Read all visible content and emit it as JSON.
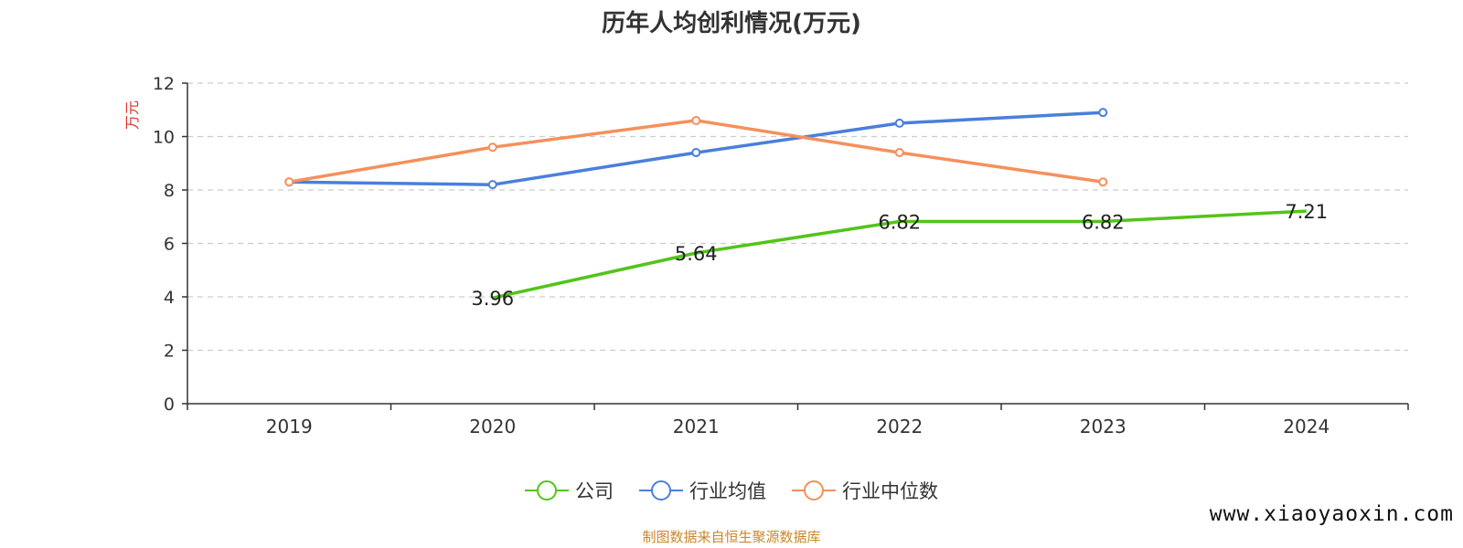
{
  "chart_data": {
    "type": "line",
    "title": "历年人均创利情况(万元)",
    "ylabel": "万元",
    "xlabel": "",
    "categories": [
      "2019",
      "2020",
      "2021",
      "2022",
      "2023",
      "2024"
    ],
    "ylim": [
      0,
      12
    ],
    "yticks": [
      0,
      2,
      4,
      6,
      8,
      10,
      12
    ],
    "grid": true,
    "legend_position": "bottom",
    "series": [
      {
        "name": "公司",
        "values": [
          null,
          3.96,
          5.64,
          6.82,
          6.82,
          7.21
        ],
        "labels": [
          null,
          "3.96",
          "5.64",
          "6.82",
          "6.82",
          "7.21"
        ],
        "color": "#52c41a"
      },
      {
        "name": "行业均值",
        "values": [
          8.3,
          8.2,
          9.4,
          10.5,
          10.9,
          null
        ],
        "color": "#4a7fdc"
      },
      {
        "name": "行业中位数",
        "values": [
          8.3,
          9.6,
          10.6,
          9.4,
          8.3,
          null
        ],
        "color": "#f5905c"
      }
    ]
  },
  "colors": {
    "ylabel": "#e0322a",
    "axis": "#333333",
    "grid": "#cccccc",
    "source": "#c9872b"
  },
  "footer": {
    "source": "制图数据来自恒生聚源数据库",
    "watermark": "www.xiaoyaoxin.com"
  }
}
